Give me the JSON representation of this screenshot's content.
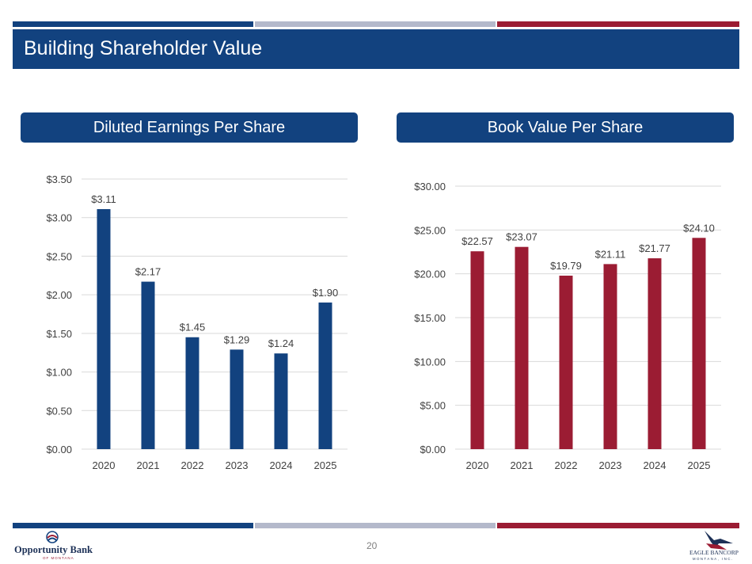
{
  "header": {
    "title": "Building Shareholder Value"
  },
  "colors": {
    "navy": "#12427f",
    "grey": "#b4b9cb",
    "red": "#9b1c33",
    "eps_bar": "#12427f",
    "bv_bar": "#9b1c33",
    "grid": "#d9d9d9",
    "label": "#404040"
  },
  "footer": {
    "page_number": "20",
    "logo_left": {
      "name": "Opportunity Bank",
      "sub": "OF MONTANA"
    },
    "logo_right": {
      "name": "EAGLE BANCORP",
      "sub": "MONTANA, INC."
    }
  },
  "chart_data": [
    {
      "type": "bar",
      "title": "Diluted Earnings Per Share",
      "categories": [
        "2020",
        "2021",
        "2022",
        "2023",
        "2024",
        "2025"
      ],
      "values": [
        3.11,
        2.17,
        1.45,
        1.29,
        1.24,
        1.9
      ],
      "data_labels": [
        "$3.11",
        "$2.17",
        "$1.45",
        "$1.29",
        "$1.24",
        "$1.90"
      ],
      "ylim": [
        0,
        3.5
      ],
      "yticks": [
        0,
        0.5,
        1.0,
        1.5,
        2.0,
        2.5,
        3.0,
        3.5
      ],
      "ytick_labels": [
        "$0.00",
        "$0.50",
        "$1.00",
        "$1.50",
        "$2.00",
        "$2.50",
        "$3.00",
        "$3.50"
      ],
      "grid": true
    },
    {
      "type": "bar",
      "title": "Book Value Per Share",
      "categories": [
        "2020",
        "2021",
        "2022",
        "2023",
        "2024",
        "2025"
      ],
      "values": [
        22.57,
        23.07,
        19.79,
        21.11,
        21.77,
        24.1
      ],
      "data_labels": [
        "$22.57",
        "$23.07",
        "$19.79",
        "$21.11",
        "$21.77",
        "$24.10"
      ],
      "ylim": [
        0,
        30
      ],
      "yticks": [
        0,
        5,
        10,
        15,
        20,
        25,
        30
      ],
      "ytick_labels": [
        "$0.00",
        "$5.00",
        "$10.00",
        "$15.00",
        "$20.00",
        "$25.00",
        "$30.00"
      ],
      "grid": true
    }
  ]
}
